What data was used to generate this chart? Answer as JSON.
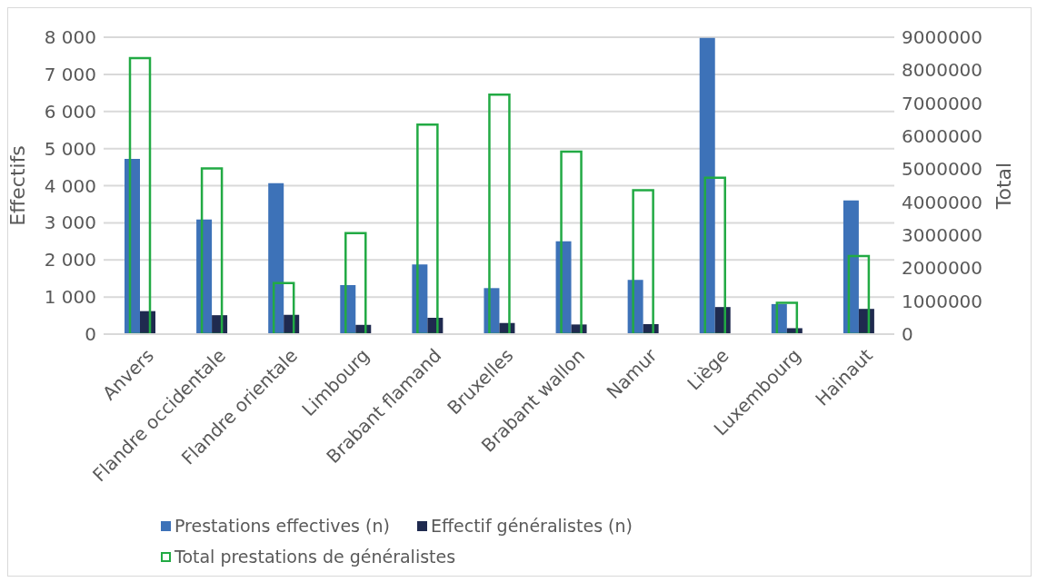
{
  "chart_data": {
    "type": "bar",
    "ylabel": "Effectifs",
    "y2label": "Total",
    "categories": [
      "Anvers",
      "Flandre occidentale",
      "Flandre orientale",
      "Limbourg",
      "Brabant flamand",
      "Bruxelles",
      "Brabant wallon",
      "Namur",
      "Liège",
      "Luxembourg",
      "Hainaut"
    ],
    "series": [
      {
        "name": "Prestations effectives (n)",
        "color": "#3d72b8",
        "values": [
          4720,
          3090,
          4070,
          1320,
          1880,
          1240,
          2500,
          1460,
          7980,
          810,
          3600
        ]
      },
      {
        "name": "Effectif généralistes (n)",
        "color": "#1f2a4f",
        "values": [
          620,
          510,
          520,
          250,
          440,
          300,
          260,
          270,
          730,
          160,
          680
        ]
      },
      {
        "name": "Total prestations de généralistes",
        "color": "#22aa44",
        "axis": "y2",
        "values": [
          8370000,
          5020000,
          1550000,
          3060000,
          6350000,
          7260000,
          5530000,
          4360000,
          4740000,
          950000,
          2370000
        ]
      }
    ],
    "ylim": [
      0,
      8000
    ],
    "yticks": [
      {
        "value": 0,
        "label": "0"
      },
      {
        "value": 1000,
        "label": "1 000"
      },
      {
        "value": 2000,
        "label": "2 000"
      },
      {
        "value": 3000,
        "label": "3 000"
      },
      {
        "value": 4000,
        "label": "4 000"
      },
      {
        "value": 5000,
        "label": "5 000"
      },
      {
        "value": 6000,
        "label": "6 000"
      },
      {
        "value": 7000,
        "label": "7 000"
      },
      {
        "value": 8000,
        "label": "8 000"
      }
    ],
    "y2lim": [
      0,
      9000000
    ],
    "y2ticks": [
      0,
      1000000,
      2000000,
      3000000,
      4000000,
      5000000,
      6000000,
      7000000,
      8000000,
      9000000
    ],
    "grid": "y",
    "legend": "bottom"
  }
}
